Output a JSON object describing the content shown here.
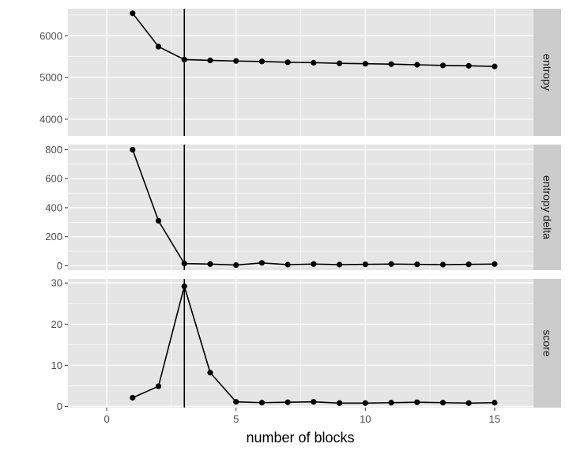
{
  "chart_data": {
    "type": "line",
    "xlabel": "number of blocks",
    "xlim": [
      -1.5,
      16.5
    ],
    "x_ticks": [
      0,
      5,
      10,
      15
    ],
    "vline_x": 3,
    "colors": {
      "panel_bg": "#e5e5e5",
      "grid_major": "#ffffff",
      "strip_bg": "#cccccc",
      "line": "#000000"
    },
    "facets": [
      {
        "label": "entropy",
        "ylim": [
          3600,
          6650
        ],
        "y_ticks": [
          4000,
          5000,
          6000
        ],
        "x": [
          1,
          2,
          3,
          4,
          5,
          6,
          7,
          8,
          9,
          10,
          11,
          12,
          13,
          14,
          15
        ],
        "y": [
          6540,
          5740,
          5430,
          5410,
          5395,
          5385,
          5365,
          5355,
          5340,
          5330,
          5320,
          5305,
          5290,
          5280,
          5265
        ]
      },
      {
        "label": "entropy delta",
        "ylim": [
          -30,
          835
        ],
        "y_ticks": [
          0,
          200,
          400,
          600,
          800
        ],
        "x": [
          1,
          2,
          3,
          4,
          5,
          6,
          7,
          8,
          9,
          10,
          11,
          12,
          13,
          14,
          15
        ],
        "y": [
          800,
          310,
          15,
          12,
          5,
          20,
          8,
          12,
          8,
          10,
          12,
          10,
          8,
          10,
          12
        ]
      },
      {
        "label": "score",
        "ylim": [
          -0.3,
          31
        ],
        "y_ticks": [
          0,
          10,
          20,
          30
        ],
        "x": [
          1,
          2,
          3,
          4,
          5,
          6,
          7,
          8,
          9,
          10,
          11,
          12,
          13,
          14,
          15
        ],
        "y": [
          2.1,
          4.9,
          29.2,
          8.2,
          1.1,
          0.9,
          1.0,
          1.1,
          0.8,
          0.8,
          0.9,
          1.0,
          0.9,
          0.8,
          0.9
        ]
      }
    ]
  }
}
